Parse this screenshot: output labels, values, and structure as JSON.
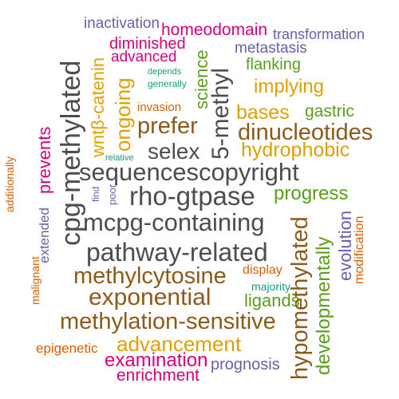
{
  "colors": {
    "grey": "#4d4d4d",
    "brown": "#8c5a1a",
    "orange": "#e0a000",
    "magenta": "#d6007a",
    "green": "#5a9e1a",
    "purple": "#6a60a8",
    "teal": "#1a9e77",
    "rust": "#d95f02"
  },
  "words": [
    {
      "text": "inactivation",
      "color": "purple"
    },
    {
      "text": "homeodomain",
      "color": "magenta"
    },
    {
      "text": "transformation",
      "color": "purple"
    },
    {
      "text": "diminished",
      "color": "magenta"
    },
    {
      "text": "metastasis",
      "color": "purple"
    },
    {
      "text": "advanced",
      "color": "magenta"
    },
    {
      "text": "flanking",
      "color": "green"
    },
    {
      "text": "depends",
      "color": "teal"
    },
    {
      "text": "generally",
      "color": "teal"
    },
    {
      "text": "implying",
      "color": "orange"
    },
    {
      "text": "invasion",
      "color": "rust"
    },
    {
      "text": "bases",
      "color": "orange"
    },
    {
      "text": "gastric",
      "color": "green"
    },
    {
      "text": "prefer",
      "color": "brown"
    },
    {
      "text": "dinucleotides",
      "color": "brown"
    },
    {
      "text": "hydrophobic",
      "color": "orange"
    },
    {
      "text": "selex",
      "color": "grey"
    },
    {
      "text": "relative",
      "color": "teal"
    },
    {
      "text": "sequencescopyright",
      "color": "grey"
    },
    {
      "text": "rho-gtpase",
      "color": "grey"
    },
    {
      "text": "progress",
      "color": "green"
    },
    {
      "text": "mcpg-containing",
      "color": "grey"
    },
    {
      "text": "pathway-related",
      "color": "grey"
    },
    {
      "text": "display",
      "color": "rust"
    },
    {
      "text": "methylcytosine",
      "color": "brown"
    },
    {
      "text": "majority",
      "color": "teal"
    },
    {
      "text": "exponential",
      "color": "brown"
    },
    {
      "text": "ligands",
      "color": "green"
    },
    {
      "text": "methylation-sensitive",
      "color": "brown"
    },
    {
      "text": "advancement",
      "color": "orange"
    },
    {
      "text": "epigenetic",
      "color": "rust"
    },
    {
      "text": "examination",
      "color": "magenta"
    },
    {
      "text": "prognosis",
      "color": "purple"
    },
    {
      "text": "enrichment",
      "color": "magenta"
    },
    {
      "text": "cpg-methylated",
      "color": "grey"
    },
    {
      "text": "wntβ-catenin",
      "color": "orange"
    },
    {
      "text": "ongoing",
      "color": "orange"
    },
    {
      "text": "science",
      "color": "green"
    },
    {
      "text": "5-methyl",
      "color": "grey"
    },
    {
      "text": "prevents",
      "color": "magenta"
    },
    {
      "text": "additionally",
      "color": "rust"
    },
    {
      "text": "extended",
      "color": "purple"
    },
    {
      "text": "malignant",
      "color": "rust"
    },
    {
      "text": "find",
      "color": "purple"
    },
    {
      "text": "poor",
      "color": "purple"
    },
    {
      "text": "hypomethylated",
      "color": "brown"
    },
    {
      "text": "developmentally",
      "color": "green"
    },
    {
      "text": "evolution",
      "color": "purple"
    },
    {
      "text": "modification",
      "color": "rust"
    }
  ]
}
